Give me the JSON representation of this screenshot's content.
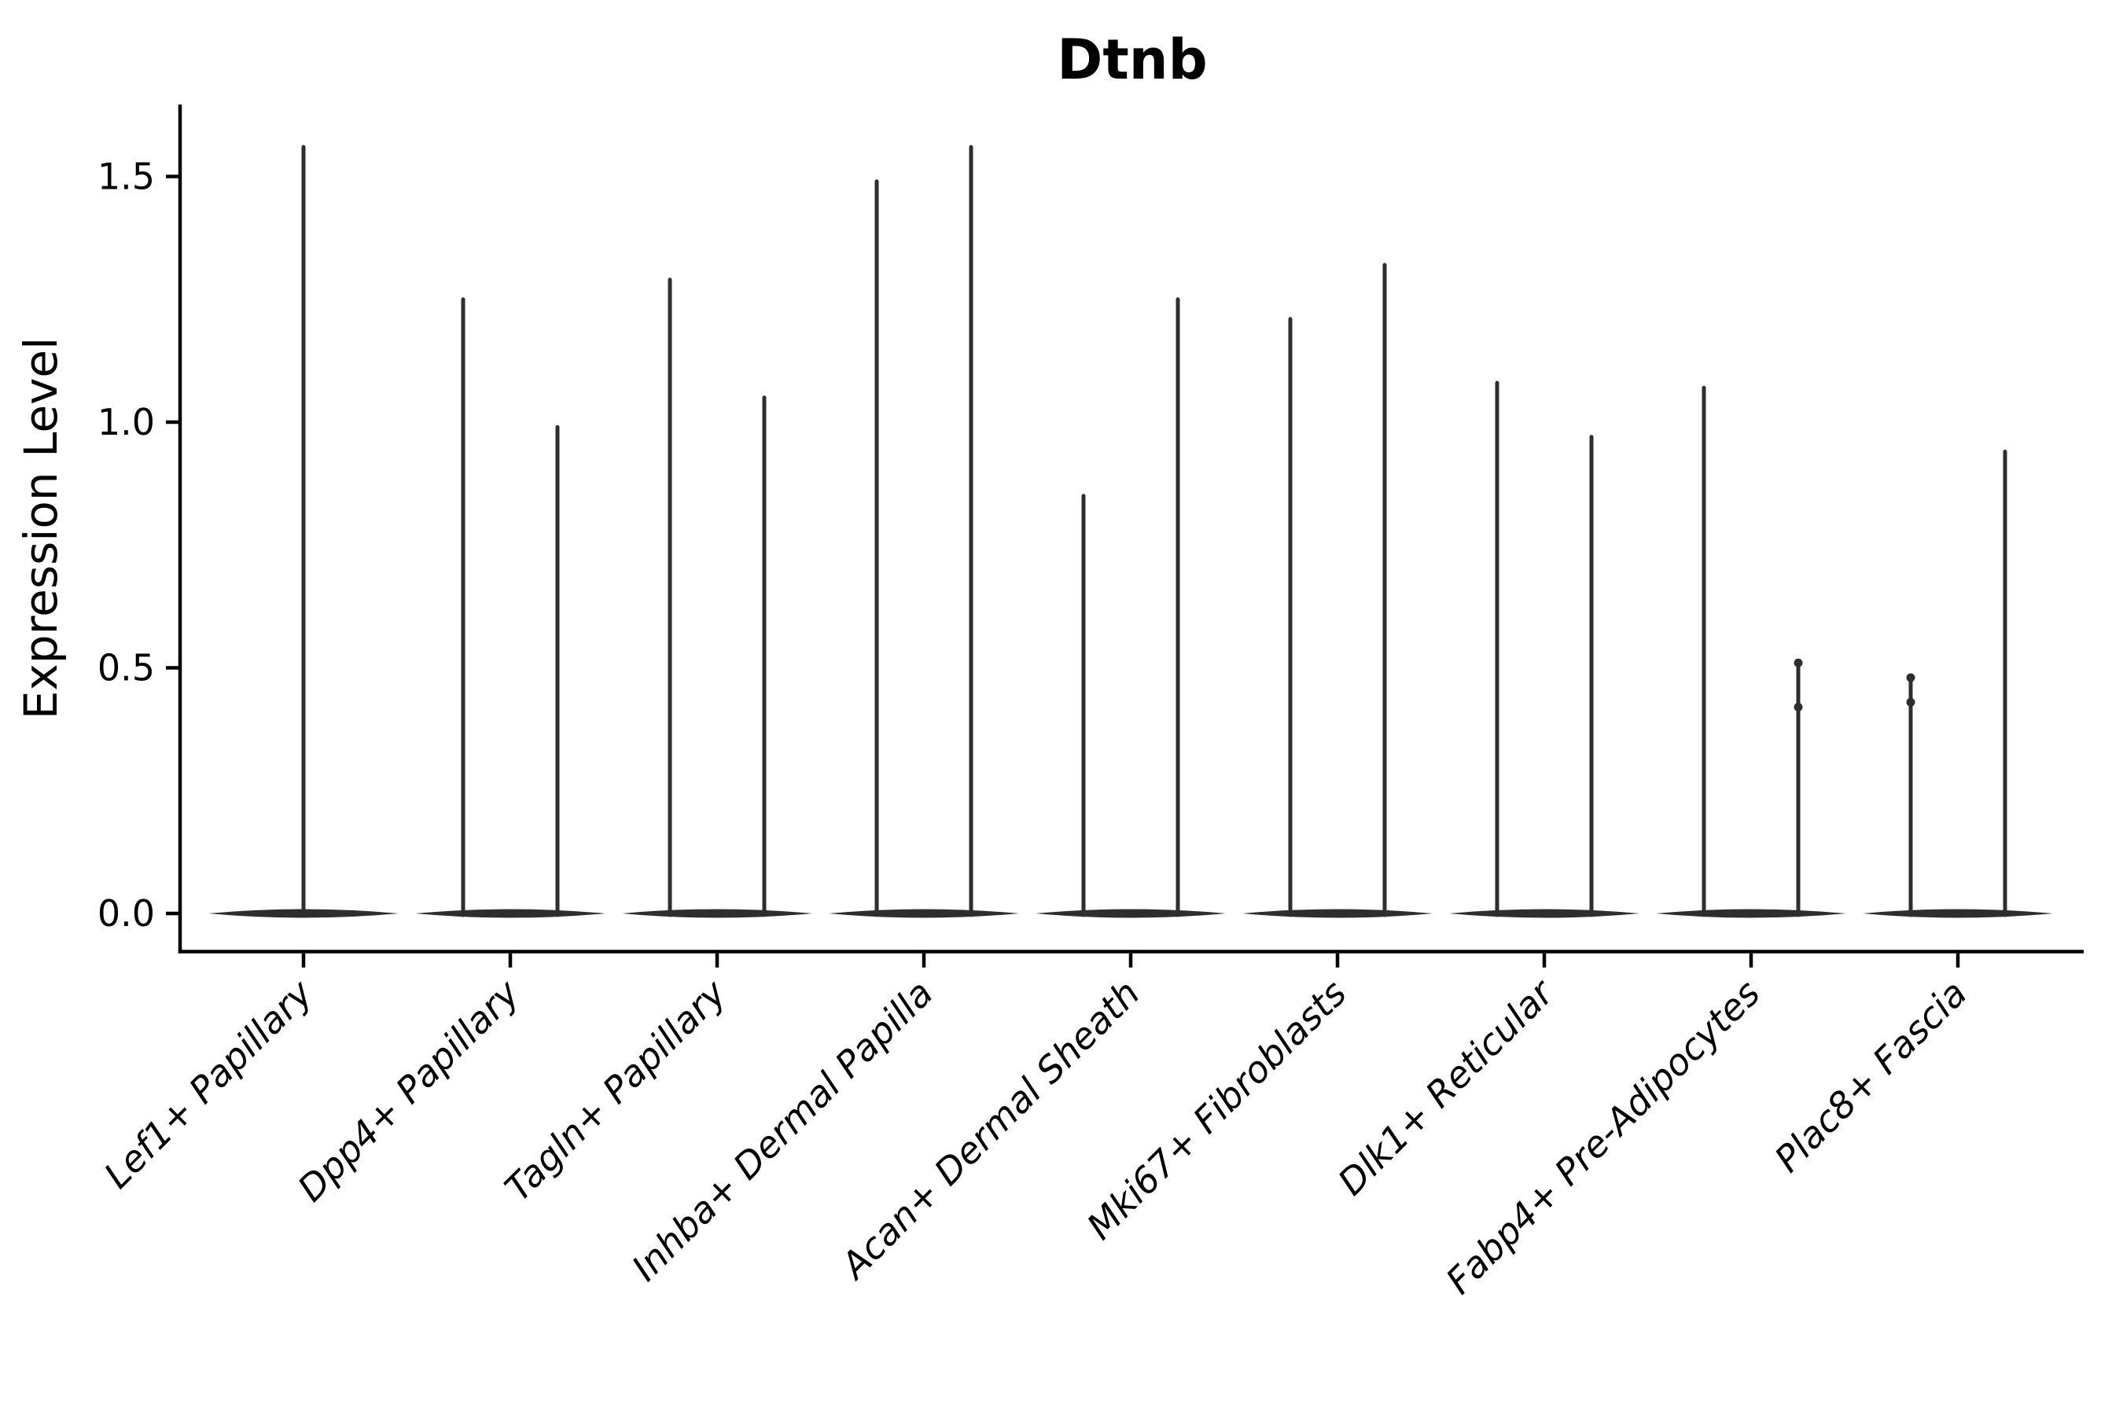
{
  "chart_data": {
    "type": "violin",
    "title": "Dtnb",
    "ylabel": "Expression Level",
    "xlabel": "",
    "yticks": [
      0.0,
      0.5,
      1.0,
      1.5
    ],
    "ytick_labels": [
      "0.0",
      "0.5",
      "1.0",
      "1.5"
    ],
    "ylim": [
      -0.08,
      1.65
    ],
    "grid": false,
    "legend": "none",
    "categories": [
      "Lef1+ Papillary",
      "Dpp4+ Papillary",
      "Tagln+ Papillary",
      "Inhba+ Dermal Papilla",
      "Acan+ Dermal Sheath",
      "Mki67+ Fibroblasts",
      "Dlk1+ Reticular",
      "Fabp4+ Pre-Adipocytes",
      "Plac8+ Fascia"
    ],
    "violins": [
      {
        "category": "Lef1+ Papillary",
        "cat_index": 0,
        "side": "center",
        "max": 1.56
      },
      {
        "category": "Dpp4+ Papillary",
        "cat_index": 1,
        "side": "left",
        "max": 1.25
      },
      {
        "category": "Dpp4+ Papillary",
        "cat_index": 1,
        "side": "right",
        "max": 0.99
      },
      {
        "category": "Tagln+ Papillary",
        "cat_index": 2,
        "side": "left",
        "max": 1.29
      },
      {
        "category": "Tagln+ Papillary",
        "cat_index": 2,
        "side": "right",
        "max": 1.05
      },
      {
        "category": "Inhba+ Dermal Papilla",
        "cat_index": 3,
        "side": "left",
        "max": 1.49
      },
      {
        "category": "Inhba+ Dermal Papilla",
        "cat_index": 3,
        "side": "right",
        "max": 1.56
      },
      {
        "category": "Acan+ Dermal Sheath",
        "cat_index": 4,
        "side": "left",
        "max": 0.85
      },
      {
        "category": "Acan+ Dermal Sheath",
        "cat_index": 4,
        "side": "right",
        "max": 1.25
      },
      {
        "category": "Mki67+ Fibroblasts",
        "cat_index": 5,
        "side": "left",
        "max": 1.21
      },
      {
        "category": "Mki67+ Fibroblasts",
        "cat_index": 5,
        "side": "right",
        "max": 1.32
      },
      {
        "category": "Dlk1+ Reticular",
        "cat_index": 6,
        "side": "left",
        "max": 1.08
      },
      {
        "category": "Dlk1+ Reticular",
        "cat_index": 6,
        "side": "right",
        "max": 0.97
      },
      {
        "category": "Fabp4+ Pre-Adipocytes",
        "cat_index": 7,
        "side": "left",
        "max": 1.07
      },
      {
        "category": "Fabp4+ Pre-Adipocytes",
        "cat_index": 7,
        "side": "right",
        "max": 0.51,
        "points": [
          0.51,
          0.42
        ]
      },
      {
        "category": "Plac8+ Fascia",
        "cat_index": 8,
        "side": "left",
        "max": 0.48,
        "points": [
          0.48,
          0.43
        ]
      },
      {
        "category": "Plac8+ Fascia",
        "cat_index": 8,
        "side": "right",
        "max": 0.94
      }
    ],
    "colors": {
      "ink": "#000000",
      "violin": "#2e2e2e",
      "background": "#ffffff"
    }
  }
}
